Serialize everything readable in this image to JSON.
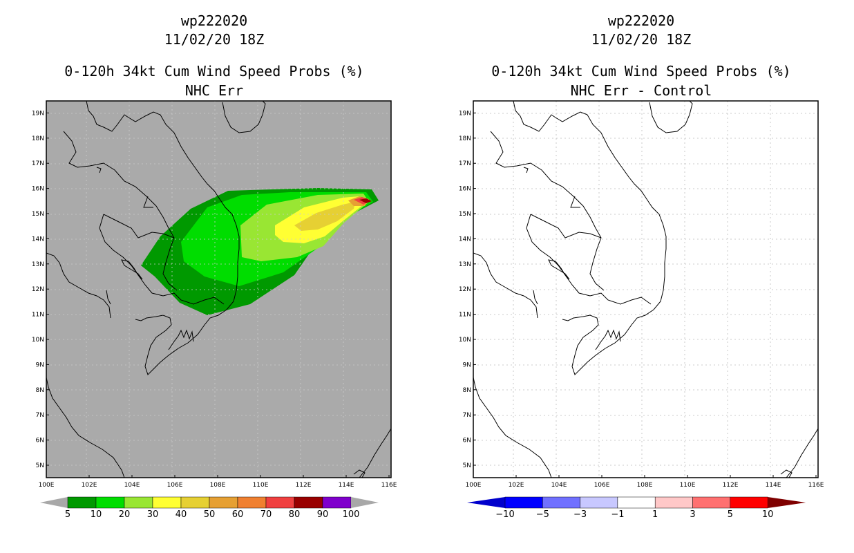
{
  "panels": [
    {
      "storm_id": "wp222020",
      "date": "11/02/20 18Z",
      "product": "0-120h 34kt Cum Wind Speed Probs (%)",
      "variant": "NHC Err",
      "colorbar_labels": [
        "5",
        "10",
        "20",
        "30",
        "40",
        "50",
        "60",
        "70",
        "80",
        "90",
        "100"
      ],
      "colors": [
        "#009900",
        "#00dd00",
        "#99e633",
        "#ffff33",
        "#e6d033",
        "#e6a033",
        "#f08030",
        "#f04040",
        "#990000",
        "#7f00cc"
      ]
    },
    {
      "storm_id": "wp222020",
      "date": "11/02/20 18Z",
      "product": "0-120h 34kt Cum Wind Speed Probs (%)",
      "variant": "NHC Err - Control",
      "colorbar_labels": [
        "−10",
        "−5",
        "−3",
        "−1",
        "1",
        "3",
        "5",
        "10"
      ],
      "colors": [
        "#0000cc",
        "#0000ff",
        "#7070ff",
        "#c8c8ff",
        "#ffffff",
        "#ffc8c8",
        "#ff7070",
        "#ff0000",
        "#7f0000"
      ]
    }
  ],
  "lon_labels": [
    "100E",
    "102E",
    "104E",
    "106E",
    "108E",
    "110E",
    "112E",
    "114E",
    "116E"
  ],
  "lat_labels": [
    "5N",
    "6N",
    "7N",
    "8N",
    "9N",
    "10N",
    "11N",
    "12N",
    "13N",
    "14N",
    "15N",
    "16N",
    "17N",
    "18N",
    "19N"
  ],
  "icons": {
    "land_outline": "coastline-lines"
  }
}
